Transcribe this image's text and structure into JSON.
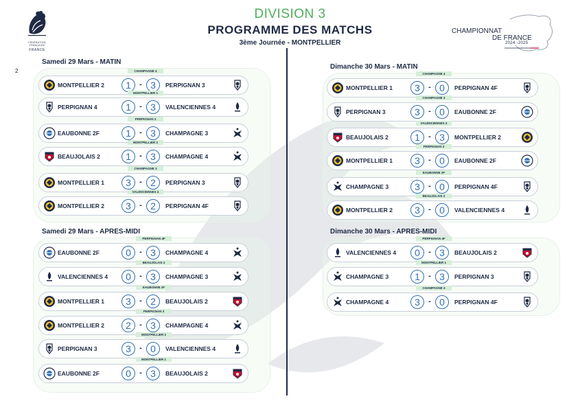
{
  "header": {
    "division": "DIVISION 3",
    "title": "PROGRAMME DES MATCHS",
    "subtitle": "3ème Journée - MONTPELLIER",
    "federation_small": "FÉDÉRATION FRANÇAISE",
    "federation_country": "FRANCE",
    "championship_line1": "CHAMPIONNAT",
    "championship_line2": "DE FRANCE",
    "season": "2024 -2025",
    "page_number": "2"
  },
  "colors": {
    "navy": "#1f2a44",
    "green": "#4fae5b",
    "score_blue": "#2f6fb3",
    "ref_bg": "#d6eed9"
  },
  "sections": [
    {
      "title": "Samedi 29 Mars - MATIN",
      "matches": [
        {
          "ref": "CHAMPAGNE 4",
          "home": "MONTPELLIER 2",
          "home_icon": "montpellier-icon",
          "home_score": "1",
          "away_score": "3",
          "away": "PERPIGNAN 3",
          "away_icon": "perpignan-icon"
        },
        {
          "ref": "MONTPELLIER 1",
          "home": "PERPIGNAN 4",
          "home_icon": "perpignan-icon",
          "home_score": "1",
          "away_score": "3",
          "away": "VALENCIENNES 4",
          "away_icon": "valenciennes-icon"
        },
        {
          "ref": "PERPIGNAN 3",
          "home": "EAUBONNE 2F",
          "home_icon": "eaubonne-icon",
          "home_score": "1",
          "away_score": "3",
          "away": "CHAMPAGNE 3",
          "away_icon": "champagne-icon"
        },
        {
          "ref": "MONTPELLIER 2",
          "home": "BEAUJOLAIS 2",
          "home_icon": "beaujolais-icon",
          "home_score": "1",
          "away_score": "3",
          "away": "CHAMPAGNE 4",
          "away_icon": "champagne-icon"
        },
        {
          "ref": "CHAMPAGNE 3",
          "home": "MONTPELLIER 1",
          "home_icon": "montpellier-icon",
          "home_score": "3",
          "away_score": "2",
          "away": "PERPIGNAN 3",
          "away_icon": "perpignan-icon"
        },
        {
          "ref": "VALENCIENNES 4",
          "home": "MONTPELLIER 2",
          "home_icon": "montpellier-icon",
          "home_score": "3",
          "away_score": "2",
          "away": "PERPIGNAN 4F",
          "away_icon": "perpignan-icon"
        }
      ]
    },
    {
      "title": "Samedi 29 Mars - APRES-MIDI",
      "matches": [
        {
          "ref": "PERPIGNAN 4F",
          "home": "EAUBONNE 2F",
          "home_icon": "eaubonne-icon",
          "home_score": "0",
          "away_score": "3",
          "away": "CHAMPAGNE 4",
          "away_icon": "champagne-icon"
        },
        {
          "ref": "BEAUJOLAIS 2",
          "home": "VALENCIENNES 4",
          "home_icon": "valenciennes-icon",
          "home_score": "0",
          "away_score": "3",
          "away": "CHAMPAGNE 3",
          "away_icon": "champagne-icon"
        },
        {
          "ref": "EAUBONNE 2F",
          "home": "MONTPELLIER 1",
          "home_icon": "montpellier-icon",
          "home_score": "3",
          "away_score": "2",
          "away": "BEAUJOLAIS 2",
          "away_icon": "beaujolais-icon"
        },
        {
          "ref": "PERPIGNAN 3",
          "home": "MONTPELLIER 2",
          "home_icon": "montpellier-icon",
          "home_score": "2",
          "away_score": "3",
          "away": "CHAMPAGNE 4",
          "away_icon": "champagne-icon"
        },
        {
          "ref": "MONTPELLIER 2",
          "home": "PERPIGNAN 3",
          "home_icon": "perpignan-icon",
          "home_score": "3",
          "away_score": "0",
          "away": "VALENCIENNES 4",
          "away_icon": "valenciennes-icon"
        },
        {
          "ref": "MONTPELLIER 1",
          "home": "EAUBONNE 2F",
          "home_icon": "eaubonne-icon",
          "home_score": "0",
          "away_score": "3",
          "away": "BEAUJOLAIS 2",
          "away_icon": "beaujolais-icon"
        }
      ]
    },
    {
      "title": "Dimanche 30 Mars - MATIN",
      "matches": [
        {
          "ref": "CHAMPAGNE 4",
          "home": "MONTPELLIER 1",
          "home_icon": "montpellier-icon",
          "home_score": "3",
          "away_score": "0",
          "away": "PERPIGNAN 4F",
          "away_icon": "perpignan-icon"
        },
        {
          "ref": "CHAMPAGNE 3",
          "home": "PERPIGNAN 3",
          "home_icon": "perpignan-icon",
          "home_score": "3",
          "away_score": "0",
          "away": "EAUBONNE 2F",
          "away_icon": "eaubonne-icon"
        },
        {
          "ref": "VALENCIENNES 4",
          "home": "BEAUJOLAIS 2",
          "home_icon": "beaujolais-icon",
          "home_score": "1",
          "away_score": "3",
          "away": "MONTPELLIER 2",
          "away_icon": "montpellier-icon"
        },
        {
          "ref": "PERPIGNAN 3",
          "home": "MONTPELLIER 1",
          "home_icon": "montpellier-icon",
          "home_score": "3",
          "away_score": "0",
          "away": "EAUBONNE 2F",
          "away_icon": "eaubonne-icon"
        },
        {
          "ref": "EAUBONNE 2F",
          "home": "CHAMPAGNE 3",
          "home_icon": "champagne-icon",
          "home_score": "3",
          "away_score": "0",
          "away": "PERPIGNAN 4F",
          "away_icon": "perpignan-icon"
        },
        {
          "ref": "BEAUJOLAIS 2",
          "home": "MONTPELLIER 2",
          "home_icon": "montpellier-icon",
          "home_score": "3",
          "away_score": "0",
          "away": "VALENCIENNES 4",
          "away_icon": "valenciennes-icon"
        }
      ]
    },
    {
      "title": "Dimanche 30 Mars - APRES-MIDI",
      "matches": [
        {
          "ref": "PERPIGNAN 4F",
          "home": "VALENCIENNES 4",
          "home_icon": "valenciennes-icon",
          "home_score": "0",
          "away_score": "3",
          "away": "BEAUJOLAIS 2",
          "away_icon": "beaujolais-icon"
        },
        {
          "ref": "MONTPELLIER 1",
          "home": "CHAMPAGNE 3",
          "home_icon": "champagne-icon",
          "home_score": "1",
          "away_score": "3",
          "away": "PERPIGNAN 3",
          "away_icon": "perpignan-icon"
        },
        {
          "ref": "CHAMPAGNE 3",
          "home": "CHAMPAGNE 4",
          "home_icon": "champagne-icon",
          "home_score": "3",
          "away_score": "0",
          "away": "PERPIGNAN 4F",
          "away_icon": "perpignan-icon"
        }
      ]
    }
  ]
}
